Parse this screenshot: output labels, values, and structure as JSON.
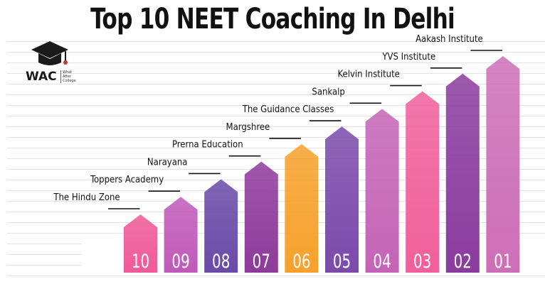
{
  "title": "Top 10 NEET Coaching In Delhi",
  "logo": {
    "text": "WAC",
    "subtext": [
      "What",
      "After",
      "College"
    ],
    "icon": "graduation-cap-icon"
  },
  "chart_data": {
    "type": "bar",
    "categories": [
      "10",
      "09",
      "08",
      "07",
      "06",
      "05",
      "04",
      "03",
      "02",
      "01"
    ],
    "labels": [
      "The Hindu Zone",
      "Toppers Academy",
      "Narayana",
      "Prerna Education",
      "Margshree",
      "The Guidance Classes",
      "Sankalp",
      "Kelvin Institute",
      "YVS Institute",
      "Aakash Institute"
    ],
    "values": [
      1,
      2,
      3,
      4,
      5,
      6,
      7,
      8,
      9,
      10
    ],
    "title": "Top 10 NEET Coaching In Delhi",
    "xlabel": "",
    "ylabel": "",
    "colors": [
      "#ef5a97",
      "#c05ab9",
      "#6a4aa8",
      "#8e3a9b",
      "#f6a12b",
      "#7b4aab",
      "#c564b6",
      "#f0609a",
      "#8a3c9e",
      "#cd6fb8"
    ],
    "grid": false,
    "legend": "none"
  }
}
